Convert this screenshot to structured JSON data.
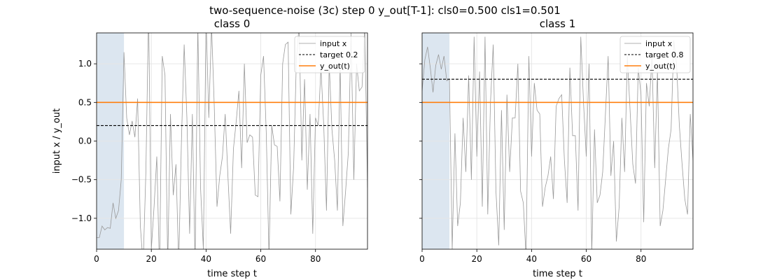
{
  "suptitle": "two-sequence-noise (3c)  step      0  y_out[T-1]: cls0=0.500  cls1=0.501",
  "colors": {
    "input": "#999999",
    "target": "#000000",
    "output": "#ff7f0e",
    "shade": "#dce6f0",
    "grid": "#e6e6e6"
  },
  "chart_data": [
    {
      "type": "line",
      "title": "class 0",
      "xlabel": "time step t",
      "ylabel": "input x  /  y_out",
      "xlim": [
        0,
        99
      ],
      "ylim": [
        -1.4,
        1.4
      ],
      "xticks": [
        0,
        20,
        40,
        60,
        80
      ],
      "yticks": [
        -1.0,
        -0.5,
        0.0,
        0.5,
        1.0
      ],
      "ytick_labels": [
        "−1.0",
        "−0.5",
        "0.0",
        "0.5",
        "1.0"
      ],
      "grid": true,
      "legend_position": "top-right",
      "shaded_x_range": [
        0,
        10
      ],
      "target": 0.2,
      "output": 0.5,
      "series": [
        {
          "name": "input x",
          "style": "thin-gray",
          "x": [
            0,
            1,
            2,
            3,
            4,
            5,
            6,
            7,
            8,
            9,
            10,
            11,
            12,
            13,
            14,
            15,
            16,
            17,
            18,
            19,
            20,
            21,
            22,
            23,
            24,
            25,
            26,
            27,
            28,
            29,
            30,
            31,
            32,
            33,
            34,
            35,
            36,
            37,
            38,
            39,
            40,
            41,
            42,
            43,
            44,
            45,
            46,
            47,
            48,
            49,
            50,
            51,
            52,
            53,
            54,
            55,
            56,
            57,
            58,
            59,
            60,
            61,
            62,
            63,
            64,
            65,
            66,
            67,
            68,
            69,
            70,
            71,
            72,
            73,
            74,
            75,
            76,
            77,
            78,
            79,
            80,
            81,
            82,
            83,
            84,
            85,
            86,
            87,
            88,
            89,
            90,
            91,
            92,
            93,
            94,
            95,
            96,
            97,
            98,
            99
          ],
          "y": [
            -1.25,
            -1.25,
            -1.1,
            -1.15,
            -1.12,
            -1.13,
            -0.8,
            -1.0,
            -0.9,
            -0.5,
            1.15,
            0.3,
            0.08,
            0.26,
            0.05,
            0.55,
            -1.1,
            -1.6,
            -0.4,
            1.7,
            -1.4,
            -0.85,
            -0.2,
            -1.7,
            1.1,
            0.85,
            -1.6,
            0.35,
            -0.7,
            -0.3,
            -1.6,
            0.0,
            1.25,
            0.3,
            -1.2,
            0.35,
            -1.6,
            1.5,
            -0.6,
            -1.4,
            1.6,
            0.3,
            1.5,
            0.45,
            -0.85,
            -0.45,
            -0.2,
            0.35,
            -0.45,
            -1.2,
            -0.1,
            0.25,
            0.65,
            -0.35,
            1.0,
            -0.02,
            0.08,
            0.05,
            -0.7,
            -0.72,
            0.85,
            1.1,
            0.1,
            -1.5,
            0.2,
            -0.05,
            -0.07,
            -0.78,
            1.0,
            1.25,
            1.28,
            -0.95,
            -0.33,
            1.05,
            1.5,
            -0.25,
            0.8,
            -0.63,
            0.35,
            -1.2,
            0.3,
            0.2,
            0.95,
            0.2,
            -0.9,
            1.0,
            0.15,
            -0.25,
            -0.9,
            1.0,
            -1.1,
            -0.65,
            -0.15,
            1.4,
            -0.5,
            1.0,
            0.65,
            0.7,
            1.5,
            -0.6
          ]
        },
        {
          "name": "target 0.2",
          "style": "dashed-black"
        },
        {
          "name": "y_out(t)",
          "style": "solid-orange"
        }
      ]
    },
    {
      "type": "line",
      "title": "class 1",
      "xlabel": "time step t",
      "xlim": [
        0,
        99
      ],
      "ylim": [
        -1.4,
        1.4
      ],
      "xticks": [
        0,
        20,
        40,
        60,
        80
      ],
      "grid": true,
      "legend_position": "top-right",
      "shaded_x_range": [
        0,
        10
      ],
      "target": 0.8,
      "output": 0.5,
      "series": [
        {
          "name": "input x",
          "style": "thin-gray",
          "x": [
            0,
            1,
            2,
            3,
            4,
            5,
            6,
            7,
            8,
            9,
            10,
            11,
            12,
            13,
            14,
            15,
            16,
            17,
            18,
            19,
            20,
            21,
            22,
            23,
            24,
            25,
            26,
            27,
            28,
            29,
            30,
            31,
            32,
            33,
            34,
            35,
            36,
            37,
            38,
            39,
            40,
            41,
            42,
            43,
            44,
            45,
            46,
            47,
            48,
            49,
            50,
            51,
            52,
            53,
            54,
            55,
            56,
            57,
            58,
            59,
            60,
            61,
            62,
            63,
            64,
            65,
            66,
            67,
            68,
            69,
            70,
            71,
            72,
            73,
            74,
            75,
            76,
            77,
            78,
            79,
            80,
            81,
            82,
            83,
            84,
            85,
            86,
            87,
            88,
            89,
            90,
            91,
            92,
            93,
            94,
            95,
            96,
            97,
            98,
            99
          ],
          "y": [
            0.65,
            1.05,
            1.22,
            0.95,
            0.63,
            0.98,
            1.12,
            0.93,
            1.1,
            0.78,
            0.8,
            -1.4,
            0.1,
            -1.1,
            -0.8,
            0.3,
            -0.4,
            0.85,
            -0.5,
            1.35,
            -0.2,
            0.9,
            -0.85,
            1.35,
            -0.95,
            0.5,
            1.25,
            -0.65,
            -1.35,
            0.4,
            -1.15,
            0.6,
            -0.4,
            0.3,
            0.3,
            1.0,
            -0.65,
            -0.8,
            -1.5,
            1.1,
            -0.2,
            0.75,
            0.4,
            0.35,
            -0.85,
            -0.6,
            -0.45,
            -0.2,
            -0.75,
            0.45,
            0.55,
            0.6,
            -0.25,
            -0.8,
            0.95,
            0.07,
            0.07,
            -0.9,
            1.35,
            0.5,
            -0.2,
            1.0,
            -1.45,
            0.15,
            -0.8,
            -0.7,
            -0.4,
            0.35,
            1.1,
            -0.45,
            0.0,
            -1.3,
            -0.85,
            0.3,
            -0.4,
            1.1,
            0.4,
            -0.3,
            -0.55,
            0.95,
            0.6,
            -1.05,
            0.75,
            0.45,
            1.1,
            -0.35,
            0.9,
            -1.1,
            -0.9,
            -0.5,
            -0.1,
            0.15,
            1.3,
            1.0,
            0.2,
            -0.3,
            -0.75,
            -0.95,
            0.35,
            -0.25
          ]
        },
        {
          "name": "target 0.8",
          "style": "dashed-black"
        },
        {
          "name": "y_out(t)",
          "style": "solid-orange"
        }
      ]
    }
  ]
}
